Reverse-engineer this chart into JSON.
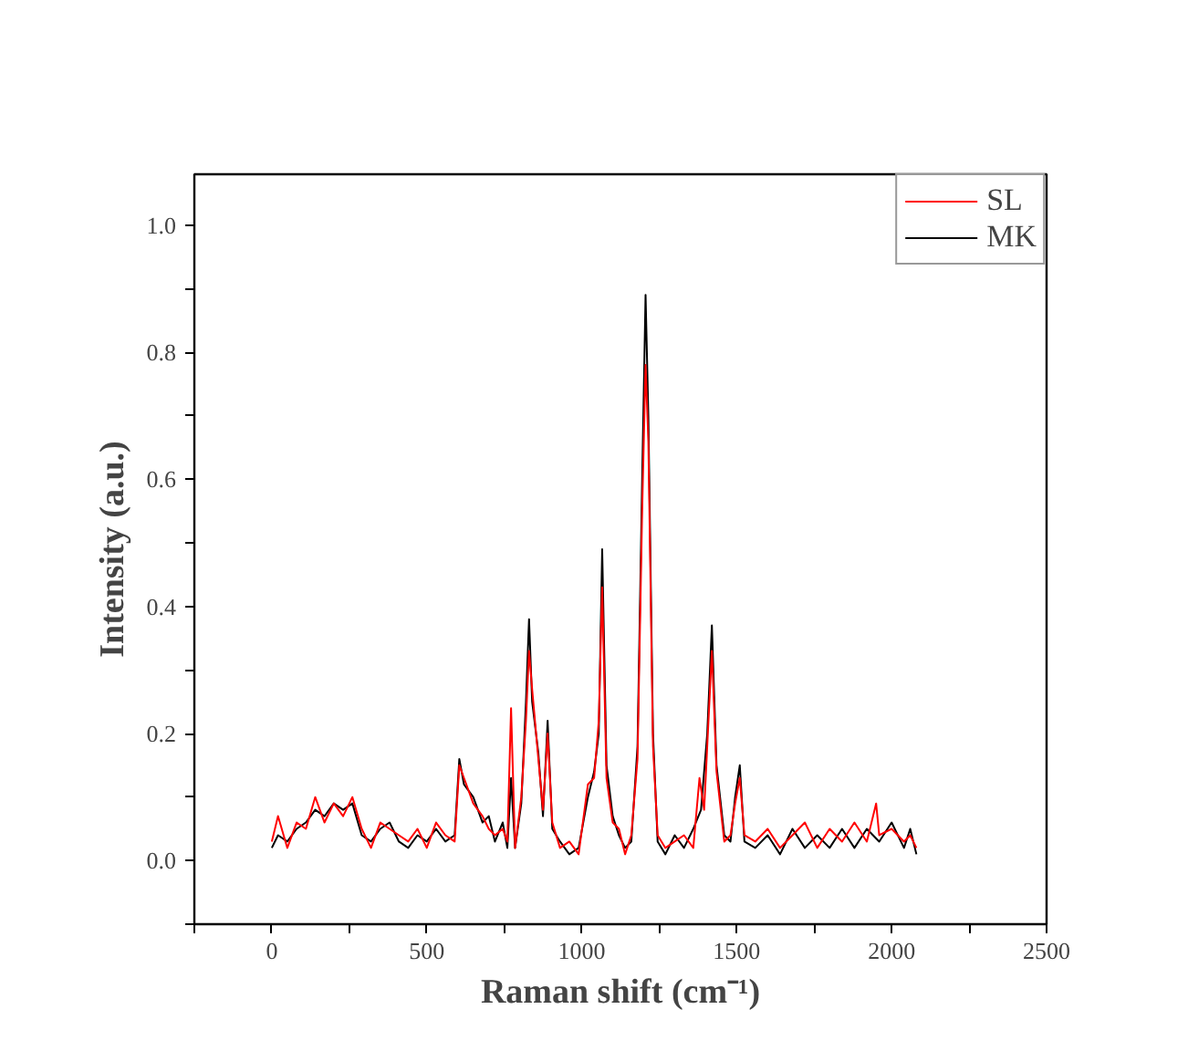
{
  "chart_data": {
    "type": "line",
    "xlabel": "Raman shift (cm⁻¹)",
    "ylabel": "Intensity (a.u.)",
    "xlim": [
      -250,
      2500
    ],
    "xticks": [
      {
        "value": -250,
        "label": null
      },
      0,
      {
        "value": 250,
        "label": null
      },
      500,
      {
        "value": 750,
        "label": null
      },
      1000,
      {
        "value": 1250,
        "label": null
      },
      1500,
      {
        "value": 1750,
        "label": null
      },
      2000,
      {
        "value": 2250,
        "label": null
      },
      2500
    ],
    "ylim": [
      -0.1,
      1.08
    ],
    "yticks": [
      {
        "value": -0.1,
        "label": null
      },
      "0.0",
      {
        "value": 0.1,
        "label": null
      },
      {
        "value": 0.2,
        "label": "0.2"
      },
      {
        "value": 0.3,
        "label": null
      },
      {
        "value": 0.4,
        "label": "0.4"
      },
      {
        "value": 0.5,
        "label": null
      },
      {
        "value": 0.6,
        "label": "0.6"
      },
      {
        "value": 0.7,
        "label": null
      },
      {
        "value": 0.8,
        "label": "0.8"
      },
      {
        "value": 0.9,
        "label": null
      },
      {
        "value": 1.0,
        "label": "1.0"
      }
    ],
    "grid": false,
    "legend": "top right",
    "line_style": "solid",
    "marker": "none",
    "series": [
      {
        "name": "SL",
        "color": "#ff0000",
        "x": [
          0,
          20,
          50,
          80,
          110,
          140,
          170,
          200,
          230,
          260,
          290,
          320,
          350,
          380,
          410,
          440,
          470,
          500,
          530,
          560,
          590,
          605,
          620,
          650,
          680,
          700,
          720,
          745,
          760,
          772,
          785,
          805,
          820,
          830,
          840,
          860,
          875,
          890,
          905,
          930,
          960,
          990,
          1020,
          1040,
          1055,
          1066,
          1080,
          1100,
          1120,
          1140,
          1160,
          1180,
          1195,
          1206,
          1215,
          1230,
          1245,
          1270,
          1300,
          1330,
          1360,
          1380,
          1395,
          1405,
          1420,
          1435,
          1460,
          1480,
          1495,
          1510,
          1525,
          1560,
          1600,
          1640,
          1680,
          1720,
          1760,
          1800,
          1840,
          1880,
          1920,
          1950,
          1960,
          2000,
          2040,
          2060,
          2080
        ],
        "values": [
          0.03,
          0.07,
          0.02,
          0.06,
          0.05,
          0.1,
          0.06,
          0.09,
          0.07,
          0.1,
          0.05,
          0.02,
          0.06,
          0.05,
          0.04,
          0.03,
          0.05,
          0.02,
          0.06,
          0.04,
          0.03,
          0.15,
          0.13,
          0.09,
          0.07,
          0.05,
          0.04,
          0.05,
          0.03,
          0.24,
          0.02,
          0.1,
          0.22,
          0.33,
          0.27,
          0.16,
          0.08,
          0.2,
          0.06,
          0.02,
          0.03,
          0.01,
          0.12,
          0.13,
          0.22,
          0.43,
          0.13,
          0.06,
          0.05,
          0.01,
          0.04,
          0.16,
          0.55,
          0.78,
          0.66,
          0.18,
          0.04,
          0.02,
          0.03,
          0.04,
          0.02,
          0.13,
          0.08,
          0.18,
          0.33,
          0.14,
          0.03,
          0.04,
          0.09,
          0.13,
          0.04,
          0.03,
          0.05,
          0.02,
          0.04,
          0.06,
          0.02,
          0.05,
          0.03,
          0.06,
          0.03,
          0.09,
          0.04,
          0.05,
          0.03,
          0.04,
          0.02
        ]
      },
      {
        "name": "MK",
        "color": "#000000",
        "x": [
          0,
          20,
          50,
          80,
          110,
          140,
          170,
          200,
          230,
          260,
          290,
          320,
          350,
          380,
          410,
          440,
          470,
          500,
          530,
          560,
          590,
          605,
          620,
          650,
          680,
          700,
          720,
          745,
          760,
          772,
          785,
          805,
          820,
          830,
          840,
          860,
          875,
          890,
          905,
          930,
          960,
          990,
          1020,
          1040,
          1055,
          1066,
          1080,
          1100,
          1120,
          1140,
          1160,
          1180,
          1195,
          1206,
          1215,
          1230,
          1245,
          1270,
          1300,
          1330,
          1360,
          1385,
          1405,
          1420,
          1435,
          1460,
          1480,
          1495,
          1510,
          1525,
          1560,
          1600,
          1640,
          1680,
          1720,
          1760,
          1800,
          1840,
          1880,
          1920,
          1960,
          2000,
          2040,
          2060,
          2080
        ],
        "values": [
          0.02,
          0.04,
          0.03,
          0.05,
          0.06,
          0.08,
          0.07,
          0.09,
          0.08,
          0.09,
          0.04,
          0.03,
          0.05,
          0.06,
          0.03,
          0.02,
          0.04,
          0.03,
          0.05,
          0.03,
          0.04,
          0.16,
          0.12,
          0.1,
          0.06,
          0.07,
          0.03,
          0.06,
          0.02,
          0.13,
          0.02,
          0.09,
          0.25,
          0.38,
          0.25,
          0.17,
          0.07,
          0.22,
          0.05,
          0.03,
          0.01,
          0.02,
          0.1,
          0.14,
          0.2,
          0.49,
          0.15,
          0.07,
          0.04,
          0.02,
          0.03,
          0.18,
          0.6,
          0.89,
          0.7,
          0.2,
          0.03,
          0.01,
          0.04,
          0.02,
          0.05,
          0.08,
          0.2,
          0.37,
          0.15,
          0.04,
          0.03,
          0.1,
          0.15,
          0.03,
          0.02,
          0.04,
          0.01,
          0.05,
          0.02,
          0.04,
          0.02,
          0.05,
          0.02,
          0.05,
          0.03,
          0.06,
          0.02,
          0.05,
          0.01
        ]
      }
    ]
  }
}
